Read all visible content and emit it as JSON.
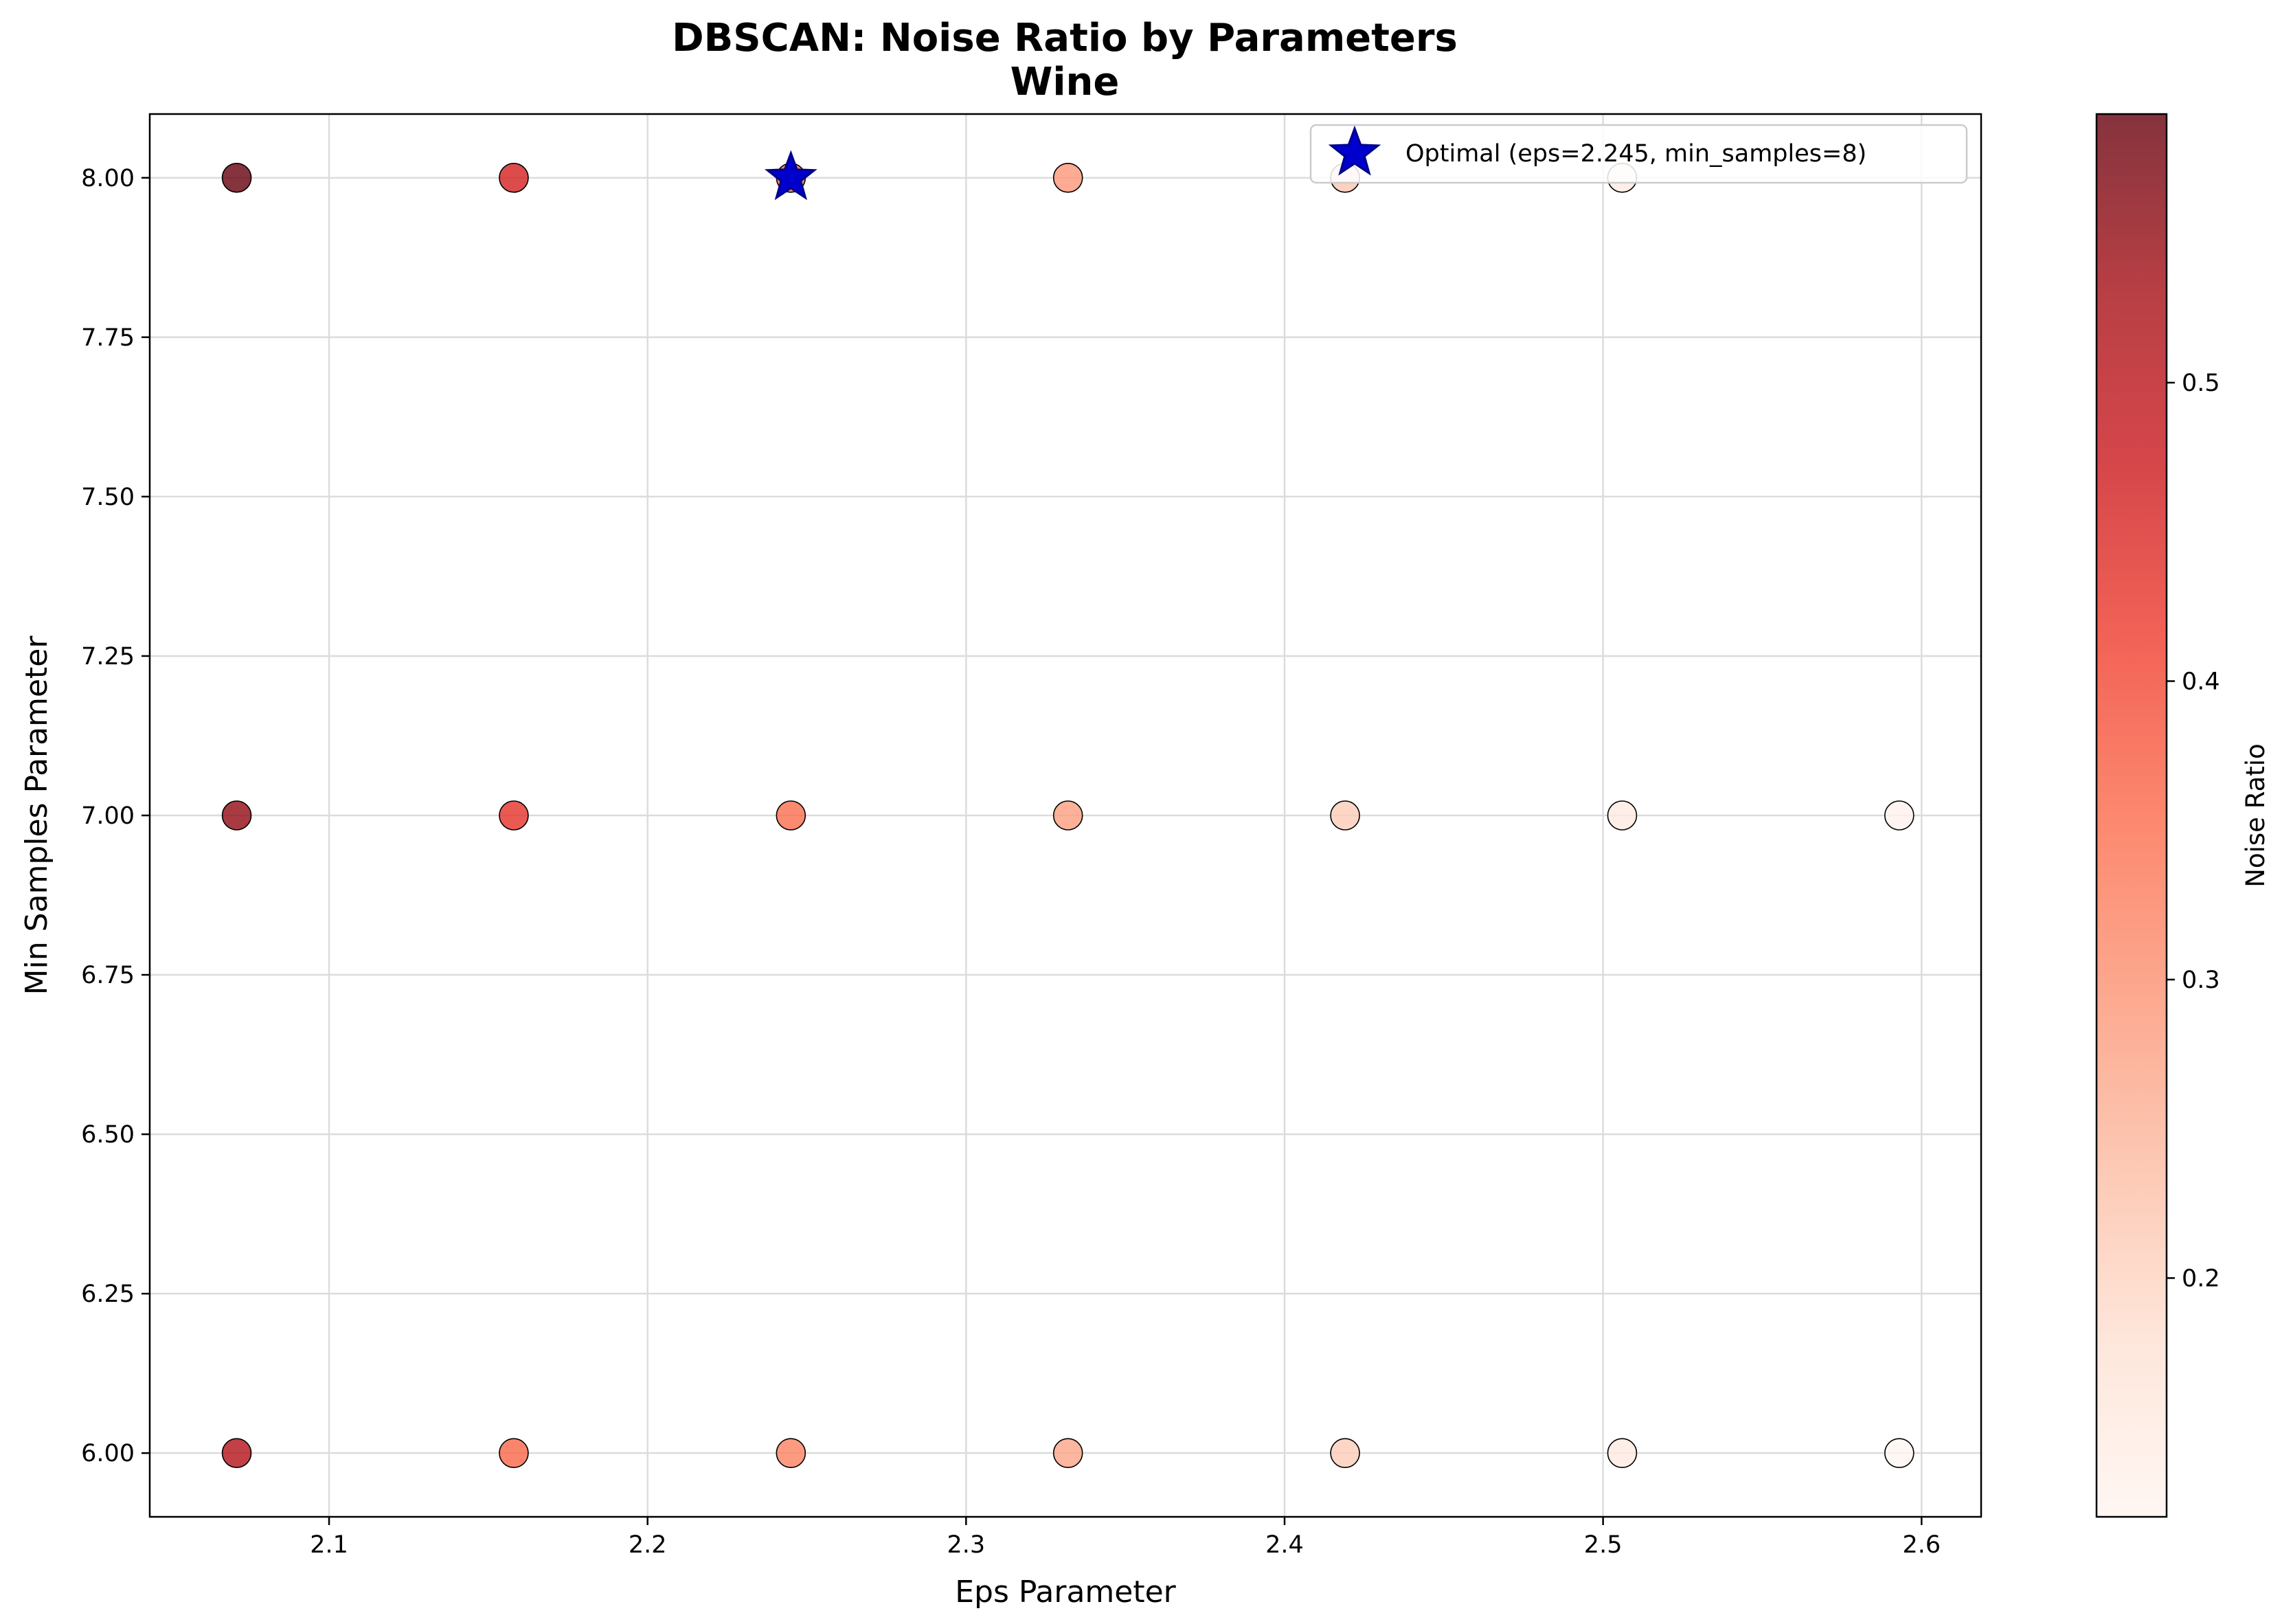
{
  "chart_data": {
    "type": "scatter",
    "title": "DBSCAN: Noise Ratio by Parameters",
    "subtitle": "Wine",
    "xlabel": "Eps Parameter",
    "ylabel": "Min Samples Parameter",
    "xlim": [
      2.0437,
      2.6187
    ],
    "ylim": [
      5.9,
      8.1
    ],
    "xticks": [
      2.1,
      2.2,
      2.3,
      2.4,
      2.5,
      2.6
    ],
    "xtick_labels": [
      "2.1",
      "2.2",
      "2.3",
      "2.4",
      "2.5",
      "2.6"
    ],
    "yticks": [
      6.0,
      6.25,
      6.5,
      6.75,
      7.0,
      7.25,
      7.5,
      7.75,
      8.0
    ],
    "ytick_labels": [
      "6.00",
      "6.25",
      "6.50",
      "6.75",
      "7.00",
      "7.25",
      "7.50",
      "7.75",
      "8.00"
    ],
    "grid": true,
    "colormap": "Reds",
    "color_alpha": 0.8,
    "colorbar": {
      "label": "Noise Ratio",
      "range": [
        0.12,
        0.59
      ],
      "ticks": [
        0.2,
        0.3,
        0.4,
        0.5
      ],
      "tick_labels": [
        "0.2",
        "0.3",
        "0.4",
        "0.5"
      ]
    },
    "points": [
      {
        "eps": 2.071,
        "min_samples": 8,
        "noise_ratio": 0.59
      },
      {
        "eps": 2.158,
        "min_samples": 8,
        "noise_ratio": 0.46
      },
      {
        "eps": 2.245,
        "min_samples": 8,
        "noise_ratio": 0.36
      },
      {
        "eps": 2.332,
        "min_samples": 8,
        "noise_ratio": 0.29
      },
      {
        "eps": 2.419,
        "min_samples": 8,
        "noise_ratio": 0.22
      },
      {
        "eps": 2.506,
        "min_samples": 8,
        "noise_ratio": 0.15
      },
      {
        "eps": 2.071,
        "min_samples": 7,
        "noise_ratio": 0.55
      },
      {
        "eps": 2.158,
        "min_samples": 7,
        "noise_ratio": 0.43
      },
      {
        "eps": 2.245,
        "min_samples": 7,
        "noise_ratio": 0.35
      },
      {
        "eps": 2.332,
        "min_samples": 7,
        "noise_ratio": 0.28
      },
      {
        "eps": 2.419,
        "min_samples": 7,
        "noise_ratio": 0.21
      },
      {
        "eps": 2.506,
        "min_samples": 7,
        "noise_ratio": 0.15
      },
      {
        "eps": 2.593,
        "min_samples": 7,
        "noise_ratio": 0.13
      },
      {
        "eps": 2.071,
        "min_samples": 6,
        "noise_ratio": 0.51
      },
      {
        "eps": 2.158,
        "min_samples": 6,
        "noise_ratio": 0.36
      },
      {
        "eps": 2.245,
        "min_samples": 6,
        "noise_ratio": 0.32
      },
      {
        "eps": 2.332,
        "min_samples": 6,
        "noise_ratio": 0.27
      },
      {
        "eps": 2.419,
        "min_samples": 6,
        "noise_ratio": 0.21
      },
      {
        "eps": 2.506,
        "min_samples": 6,
        "noise_ratio": 0.15
      },
      {
        "eps": 2.593,
        "min_samples": 6,
        "noise_ratio": 0.12
      }
    ],
    "optimal": {
      "eps": 2.245,
      "min_samples": 8,
      "label": "Optimal (eps=2.245, min_samples=8)",
      "marker": "star",
      "color": "#0000cc"
    },
    "legend": {
      "location": "top-right"
    }
  }
}
